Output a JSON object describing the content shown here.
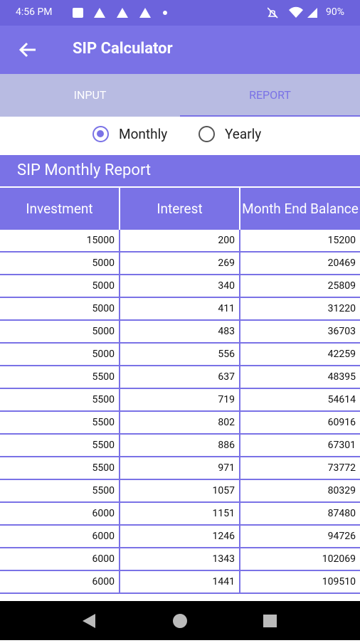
{
  "status_bar": {
    "time": "4:56 PM",
    "battery": "90%"
  },
  "app_bar": {
    "title": "SIP Calculator"
  },
  "tabs": [
    "INPUT",
    "REPORT"
  ],
  "radio_options": [
    "Monthly",
    "Yearly"
  ],
  "report": {
    "title": "SIP Monthly Report",
    "table": {
      "headers": [
        "Investment",
        "Interest",
        "Month End Balance"
      ],
      "rows": [
        [
          15000,
          200,
          15200
        ],
        [
          5000,
          269,
          20469
        ],
        [
          5000,
          340,
          25809
        ],
        [
          5000,
          411,
          31220
        ],
        [
          5000,
          483,
          36703
        ],
        [
          5000,
          556,
          42259
        ],
        [
          5500,
          637,
          48395
        ],
        [
          5500,
          719,
          54614
        ],
        [
          5500,
          802,
          60916
        ],
        [
          5500,
          886,
          67301
        ],
        [
          5500,
          971,
          73772
        ],
        [
          5500,
          1057,
          80329
        ],
        [
          6000,
          1151,
          87480
        ],
        [
          6000,
          1246,
          94726
        ],
        [
          6000,
          1343,
          102069
        ],
        [
          6000,
          1441,
          109510
        ]
      ]
    }
  }
}
